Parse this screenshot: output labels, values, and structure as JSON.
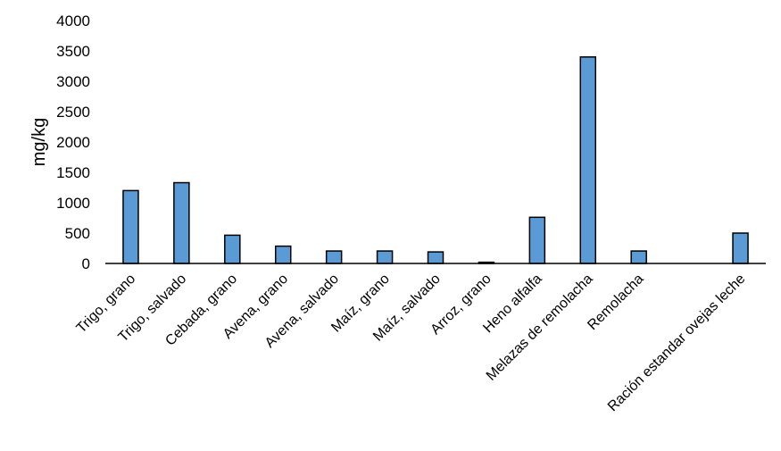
{
  "chart_data": {
    "type": "bar",
    "title": "",
    "xlabel": "",
    "ylabel": "mg/kg",
    "ylim": [
      0,
      4000
    ],
    "yticks": [
      0,
      500,
      1000,
      1500,
      2000,
      2500,
      3000,
      3500,
      4000
    ],
    "grid": false,
    "legend": "none",
    "bar_color": "#5B9BD5",
    "bar_edge_color": "#000000",
    "categories": [
      "Trigo, grano",
      "Trigo, salvado",
      "Cebada, grano",
      "Avena, grano",
      "Avena, salvado",
      "Maíz, grano",
      "Maíz, salvado",
      "Arroz, grano",
      "Heno alfalfa",
      "Melazas de remolacha",
      "Remolacha",
      "",
      "Ración estandar ovejas leche"
    ],
    "values": [
      1200,
      1330,
      465,
      285,
      205,
      205,
      190,
      20,
      760,
      3400,
      205,
      null,
      500
    ]
  }
}
